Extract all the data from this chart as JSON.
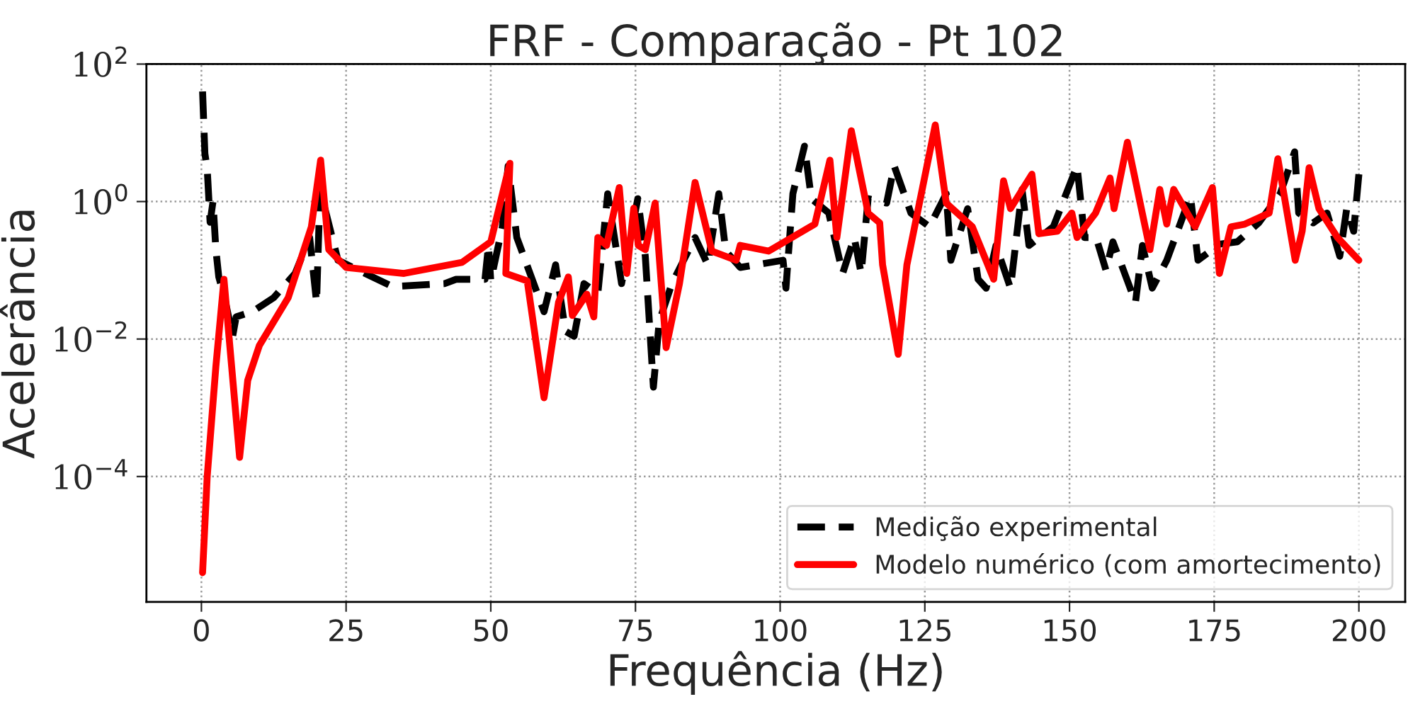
{
  "chart_data": {
    "type": "line",
    "title": "FRF - Comparação - Pt 102",
    "xlabel": "Frequência (Hz)",
    "ylabel": "Acelerância",
    "log": "y",
    "xlim": [
      -9.5,
      208
    ],
    "xticks": [
      0,
      25,
      50,
      75,
      100,
      125,
      150,
      175,
      200
    ],
    "ylim": [
      1.5e-06,
      100
    ],
    "yticks": [
      {
        "value": 100,
        "label": "10$^{2}$"
      },
      {
        "value": 1,
        "label": "10$^{0}$"
      },
      {
        "value": 0.01,
        "label": "10$^{−2}$"
      },
      {
        "value": 0.0001,
        "label": "10$^{−4}$"
      }
    ],
    "grid": true,
    "legend": "bottom right",
    "series": [
      {
        "name": "Medição experimental",
        "color": "#000000",
        "line_style": "dashed",
        "x": [
          0.2,
          0.6,
          1.0,
          1.5,
          2.0,
          2.5,
          3.0,
          4.0,
          5.4,
          6.0,
          8.8,
          12.5,
          16.2,
          18.7,
          19.9,
          20.5,
          23.6,
          33,
          42,
          44,
          49,
          49.6,
          50,
          52,
          53,
          54.5,
          59.2,
          61.2,
          62.9,
          64.4,
          66.1,
          68.5,
          70.2,
          72.6,
          75.4,
          76.7,
          78.1,
          79.1,
          81.3,
          85.3,
          87.5,
          89.4,
          90.6,
          93.1,
          100.5,
          101,
          102.2,
          104.2,
          105.4,
          108.4,
          110.8,
          112.8,
          114,
          115.2,
          118.4,
          119.7,
          122.6,
          125.8,
          128.7,
          129.5,
          132.4,
          134.2,
          135.6,
          137.3,
          139.8,
          141.8,
          143,
          147.2,
          151.3,
          152.6,
          154.6,
          156.3,
          157.5,
          161.4,
          162.6,
          164.3,
          166.8,
          170.9,
          172.2,
          175.9,
          179,
          182.7,
          186.4,
          188.9,
          189.6,
          192.1,
          194.5,
          196.7,
          197.9,
          199.1,
          200
        ],
        "values": [
          40,
          5,
          3,
          0.5,
          1.0,
          0.2,
          0.08,
          0.04,
          0.011,
          0.021,
          0.025,
          0.04,
          0.09,
          0.3,
          0.034,
          1.5,
          0.14,
          0.058,
          0.064,
          0.074,
          0.074,
          0.23,
          0.07,
          0.43,
          3.3,
          0.3,
          0.025,
          0.12,
          0.013,
          0.011,
          0.064,
          0.046,
          1.3,
          0.064,
          1.1,
          0.16,
          0.002,
          0.018,
          0.064,
          0.3,
          0.12,
          1.3,
          0.19,
          0.11,
          0.14,
          0.055,
          1.3,
          6.4,
          1.1,
          0.68,
          0.09,
          0.3,
          0.09,
          1.1,
          0.95,
          3.3,
          0.68,
          0.43,
          1.3,
          0.14,
          0.79,
          0.074,
          0.055,
          0.23,
          0.055,
          1.5,
          0.23,
          0.43,
          3.3,
          0.3,
          0.3,
          0.1,
          0.26,
          0.034,
          0.23,
          0.055,
          0.14,
          1.2,
          0.14,
          0.24,
          0.26,
          0.49,
          1.3,
          5.3,
          0.68,
          0.49,
          0.68,
          0.16,
          0.79,
          0.37,
          2.5
        ]
      },
      {
        "name": "Modelo numérico (com amortecimento)",
        "color": "#ff0000",
        "line_style": "solid",
        "x": [
          0.2,
          1,
          2.5,
          3.9,
          6.6,
          8,
          10,
          15,
          19,
          20.6,
          22,
          25,
          35,
          45,
          50,
          53.3,
          52.6,
          56.3,
          59.2,
          61.7,
          63.4,
          64.1,
          66.6,
          67.8,
          68.5,
          70,
          72.2,
          73.5,
          74.7,
          75.5,
          76.7,
          78.4,
          80.3,
          82.6,
          85.3,
          88.2,
          92.4,
          93.1,
          98,
          106,
          108.6,
          109.8,
          112.3,
          115.2,
          117.2,
          117.7,
          120.4,
          121.9,
          126.8,
          128.7,
          133.2,
          136.9,
          138.6,
          139.8,
          143.5,
          144.7,
          147.9,
          150.4,
          151.3,
          154.5,
          157,
          157.7,
          160,
          163.9,
          165.6,
          166.8,
          168,
          171.7,
          174.7,
          175.9,
          177.9,
          180.3,
          184.5,
          186,
          189,
          190.2,
          191.4,
          193.1,
          196.3,
          200
        ],
        "values": [
          4e-06,
          0.0001,
          0.004,
          0.074,
          0.00019,
          0.0025,
          0.008,
          0.04,
          0.43,
          4,
          0.2,
          0.11,
          0.09,
          0.13,
          0.26,
          3.6,
          0.09,
          0.07,
          0.0014,
          0.034,
          0.08,
          0.022,
          0.045,
          0.021,
          0.3,
          0.23,
          1.6,
          0.09,
          0.8,
          0.23,
          0.2,
          0.95,
          0.0075,
          0.064,
          1.9,
          0.19,
          0.14,
          0.23,
          0.19,
          0.47,
          4,
          0.3,
          10.7,
          0.68,
          0.49,
          0.12,
          0.006,
          0.12,
          13,
          0.95,
          0.43,
          0.074,
          2,
          0.79,
          2.5,
          0.34,
          0.37,
          0.68,
          0.3,
          0.68,
          2.2,
          0.79,
          7.3,
          0.2,
          1.5,
          0.47,
          1.5,
          0.43,
          1.6,
          0.09,
          0.43,
          0.47,
          0.68,
          4.2,
          0.14,
          0.37,
          3.1,
          0.79,
          0.3,
          0.14
        ]
      }
    ]
  }
}
